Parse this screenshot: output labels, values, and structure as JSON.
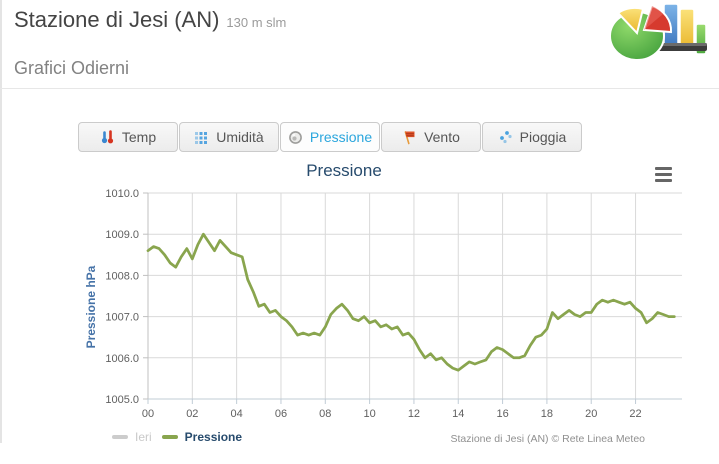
{
  "header": {
    "station_title": "Stazione di Jesi (AN)",
    "station_subtitle": "130 m slm",
    "section_title": "Grafici Odierni"
  },
  "tabs": [
    {
      "label": "Temp",
      "icon": "thermometer-icon",
      "active": false
    },
    {
      "label": "Umidità",
      "icon": "humidity-grid-icon",
      "active": false
    },
    {
      "label": "Pressione",
      "icon": "gauge-icon",
      "active": true
    },
    {
      "label": "Vento",
      "icon": "wind-flag-icon",
      "active": false
    },
    {
      "label": "Pioggia",
      "icon": "rain-drops-icon",
      "active": false
    }
  ],
  "chart": {
    "title": "Pressione",
    "menu_icon": "hamburger-menu-icon",
    "credits": "Stazione di Jesi (AN) © Rete Linea Meteo",
    "legend": [
      {
        "name": "Ieri",
        "color": "#cccccc",
        "visible": false
      },
      {
        "name": "Pressione",
        "color": "#89A54E",
        "visible": true
      }
    ]
  },
  "chart_data": {
    "type": "line",
    "title": "Pressione",
    "xlabel": "",
    "ylabel": "Pressione hPa",
    "ylim": [
      1005.0,
      1010.0
    ],
    "y_ticks": [
      1010.0,
      1009.0,
      1008.0,
      1007.0,
      1006.0,
      1005.0
    ],
    "x_ticks": [
      "00",
      "02",
      "04",
      "06",
      "08",
      "10",
      "12",
      "14",
      "16",
      "18",
      "20",
      "22"
    ],
    "x_range_hours": [
      0,
      24
    ],
    "grid": true,
    "legend_position": "bottom-left",
    "series": [
      {
        "name": "Ieri",
        "color": "#cccccc",
        "visible": false,
        "points": []
      },
      {
        "name": "Pressione",
        "color": "#89A54E",
        "visible": true,
        "points": [
          [
            0.0,
            1008.6
          ],
          [
            0.25,
            1008.7
          ],
          [
            0.5,
            1008.65
          ],
          [
            0.75,
            1008.5
          ],
          [
            1.0,
            1008.3
          ],
          [
            1.25,
            1008.2
          ],
          [
            1.5,
            1008.45
          ],
          [
            1.75,
            1008.65
          ],
          [
            2.0,
            1008.4
          ],
          [
            2.25,
            1008.75
          ],
          [
            2.5,
            1009.0
          ],
          [
            2.75,
            1008.8
          ],
          [
            3.0,
            1008.6
          ],
          [
            3.25,
            1008.85
          ],
          [
            3.5,
            1008.7
          ],
          [
            3.75,
            1008.55
          ],
          [
            4.0,
            1008.5
          ],
          [
            4.25,
            1008.45
          ],
          [
            4.5,
            1007.9
          ],
          [
            4.75,
            1007.6
          ],
          [
            5.0,
            1007.25
          ],
          [
            5.25,
            1007.3
          ],
          [
            5.5,
            1007.1
          ],
          [
            5.75,
            1007.15
          ],
          [
            6.0,
            1007.0
          ],
          [
            6.25,
            1006.9
          ],
          [
            6.5,
            1006.75
          ],
          [
            6.75,
            1006.55
          ],
          [
            7.0,
            1006.6
          ],
          [
            7.25,
            1006.55
          ],
          [
            7.5,
            1006.6
          ],
          [
            7.75,
            1006.55
          ],
          [
            8.0,
            1006.75
          ],
          [
            8.25,
            1007.05
          ],
          [
            8.5,
            1007.2
          ],
          [
            8.75,
            1007.3
          ],
          [
            9.0,
            1007.15
          ],
          [
            9.25,
            1006.95
          ],
          [
            9.5,
            1006.9
          ],
          [
            9.75,
            1007.0
          ],
          [
            10.0,
            1006.85
          ],
          [
            10.25,
            1006.9
          ],
          [
            10.5,
            1006.75
          ],
          [
            10.75,
            1006.8
          ],
          [
            11.0,
            1006.7
          ],
          [
            11.25,
            1006.75
          ],
          [
            11.5,
            1006.55
          ],
          [
            11.75,
            1006.6
          ],
          [
            12.0,
            1006.45
          ],
          [
            12.25,
            1006.2
          ],
          [
            12.5,
            1006.0
          ],
          [
            12.75,
            1006.1
          ],
          [
            13.0,
            1005.95
          ],
          [
            13.25,
            1006.0
          ],
          [
            13.5,
            1005.85
          ],
          [
            13.75,
            1005.75
          ],
          [
            14.0,
            1005.7
          ],
          [
            14.25,
            1005.8
          ],
          [
            14.5,
            1005.9
          ],
          [
            14.75,
            1005.85
          ],
          [
            15.0,
            1005.9
          ],
          [
            15.25,
            1005.95
          ],
          [
            15.5,
            1006.15
          ],
          [
            15.75,
            1006.25
          ],
          [
            16.0,
            1006.2
          ],
          [
            16.25,
            1006.1
          ],
          [
            16.5,
            1006.0
          ],
          [
            16.75,
            1006.0
          ],
          [
            17.0,
            1006.05
          ],
          [
            17.25,
            1006.3
          ],
          [
            17.5,
            1006.5
          ],
          [
            17.75,
            1006.55
          ],
          [
            18.0,
            1006.7
          ],
          [
            18.25,
            1007.1
          ],
          [
            18.5,
            1006.95
          ],
          [
            18.75,
            1007.05
          ],
          [
            19.0,
            1007.15
          ],
          [
            19.25,
            1007.05
          ],
          [
            19.5,
            1007.0
          ],
          [
            19.75,
            1007.1
          ],
          [
            20.0,
            1007.1
          ],
          [
            20.25,
            1007.3
          ],
          [
            20.5,
            1007.4
          ],
          [
            20.75,
            1007.35
          ],
          [
            21.0,
            1007.4
          ],
          [
            21.25,
            1007.35
          ],
          [
            21.5,
            1007.3
          ],
          [
            21.75,
            1007.35
          ],
          [
            22.0,
            1007.2
          ],
          [
            22.25,
            1007.1
          ],
          [
            22.5,
            1006.85
          ],
          [
            22.75,
            1006.95
          ],
          [
            23.0,
            1007.1
          ],
          [
            23.25,
            1007.05
          ],
          [
            23.5,
            1007.0
          ],
          [
            23.75,
            1007.0
          ]
        ]
      }
    ]
  },
  "colors": {
    "line_green": "#89A54E",
    "hidden_series_gray": "#cccccc",
    "title_navy": "#274b6d",
    "yaxis_title_blue": "#4572A7",
    "axis_label_gray": "#606060",
    "grid_gray": "#d9d9d9",
    "active_tab_blue": "#2ba6dd"
  }
}
